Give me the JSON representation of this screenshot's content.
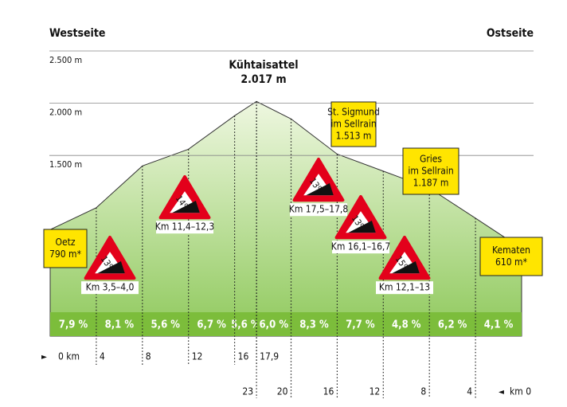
{
  "chart_data": {
    "type": "elevation-profile",
    "side_labels": [
      "Westseite",
      "Ostseite"
    ],
    "summit": {
      "name": "Kühtaisattel",
      "elevation": "2.017 m"
    },
    "ylim": [
      0,
      2500
    ],
    "yticks": [
      {
        "value": 2500,
        "label": "2.500 m"
      },
      {
        "value": 2000,
        "label": "2.000 m"
      },
      {
        "value": 1500,
        "label": "1.500 m"
      }
    ],
    "grid": true,
    "profile": {
      "x": [
        0,
        4,
        8,
        10.5,
        12,
        16,
        17.9,
        20.9,
        24.9,
        28.9,
        32.9,
        36.9,
        40.9
      ],
      "values": [
        790,
        1000,
        1400,
        1500,
        1560,
        1880,
        2017,
        1850,
        1513,
        1350,
        1187,
        900,
        610
      ],
      "color": "#cfe8ad"
    },
    "west_ticks": [
      {
        "value": 0,
        "label": "0 km"
      },
      4,
      8,
      12,
      16,
      {
        "value": 17.9,
        "label": "17,9"
      }
    ],
    "east_ticks": [
      23,
      20,
      16,
      12,
      8,
      4,
      {
        "value": 0,
        "label": "km 0"
      }
    ],
    "gradients": {
      "values": [
        7.9,
        8.1,
        5.6,
        6.7,
        5.6,
        6.0,
        8.3,
        7.7,
        4.8,
        6.2,
        4.1
      ],
      "value_labels": [
        "7,9 %",
        "8,1 %",
        "5,6 %",
        "6,7 %",
        "5,6 %",
        "6,0 %",
        "8,3 %",
        "7,7 %",
        "4,8 %",
        "6,2 %",
        "4,1 %"
      ],
      "color": "#7cbd3b"
    },
    "places": [
      {
        "lines": [
          "Oetz",
          "790 m*"
        ]
      },
      {
        "lines": [
          "St. Sigmund",
          "im Sellrain",
          "1.513 m"
        ]
      },
      {
        "lines": [
          "Gries",
          "im Sellrain",
          "1.187 m"
        ]
      },
      {
        "lines": [
          "Kematen",
          "610 m*"
        ]
      }
    ],
    "steep_sections": [
      {
        "grade": "13%",
        "range": "Km 3,5–4,0"
      },
      {
        "grade": "14%",
        "range": "Km 11,4–12,3"
      },
      {
        "grade": "13%",
        "range": "Km 17,5–17,8"
      },
      {
        "grade": "13%",
        "range": "Km 16,1–16,7"
      },
      {
        "grade": "15%",
        "range": "Km 12,1–13"
      }
    ]
  }
}
